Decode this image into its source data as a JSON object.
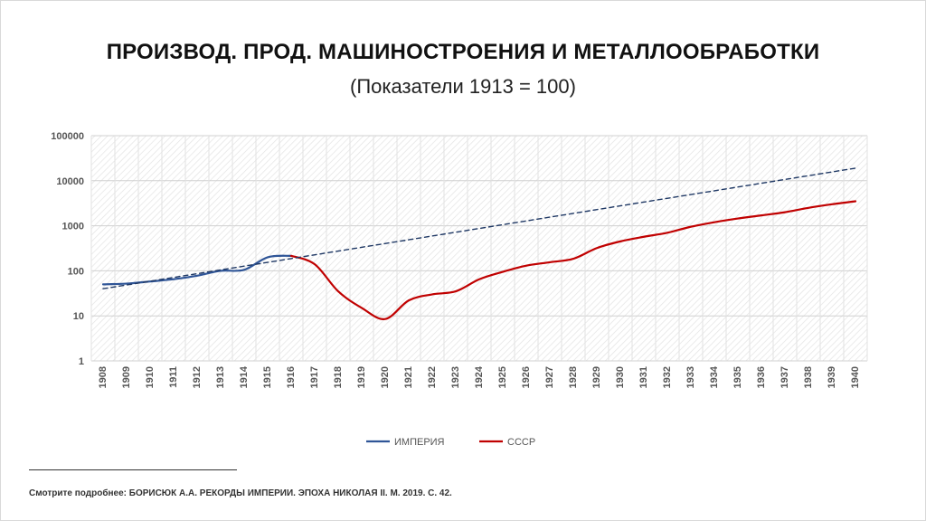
{
  "header": {
    "title": "ПРОИЗВОД. ПРОД. МАШИНОСТРОЕНИЯ И МЕТАЛЛООБРАБОТКИ",
    "subtitle": "(Показатели 1913 = 100)"
  },
  "footnote": "Смотрите подробнее: БОРИСЮК А.А. РЕКОРДЫ ИМПЕРИИ. ЭПОХА НИКОЛАЯ II. М. 2019. С. 42.",
  "chart_data": {
    "type": "line",
    "y_scale": "log",
    "ylim": [
      1,
      100000
    ],
    "y_ticks": [
      1,
      10,
      100,
      1000,
      10000,
      100000
    ],
    "y_tick_labels": [
      "1",
      "10",
      "100",
      "1000",
      "10000",
      "100000"
    ],
    "grid": true,
    "legend_position": "bottom",
    "x": [
      1908,
      1909,
      1910,
      1911,
      1912,
      1913,
      1914,
      1915,
      1916,
      1917,
      1918,
      1919,
      1920,
      1921,
      1922,
      1923,
      1924,
      1925,
      1926,
      1927,
      1928,
      1929,
      1930,
      1931,
      1932,
      1933,
      1934,
      1935,
      1936,
      1937,
      1938,
      1939,
      1940
    ],
    "series": [
      {
        "name": "ИМПЕРИЯ",
        "color": "#2f5597",
        "style": "solid",
        "x": [
          1908,
          1909,
          1910,
          1911,
          1912,
          1913,
          1914,
          1915,
          1916
        ],
        "values": [
          50,
          52,
          58,
          65,
          78,
          100,
          105,
          200,
          215
        ]
      },
      {
        "name": "СССР",
        "color": "#c00000",
        "style": "solid",
        "x": [
          1916,
          1917,
          1918,
          1919,
          1920,
          1921,
          1922,
          1923,
          1924,
          1925,
          1926,
          1927,
          1928,
          1929,
          1930,
          1931,
          1932,
          1933,
          1934,
          1935,
          1936,
          1937,
          1938,
          1939,
          1940
        ],
        "values": [
          215,
          140,
          35,
          15,
          8.5,
          22,
          30,
          35,
          65,
          95,
          130,
          155,
          185,
          320,
          450,
          570,
          700,
          950,
          1200,
          1450,
          1700,
          2000,
          2500,
          3000,
          3500
        ]
      },
      {
        "name": "",
        "color": "#1f3864",
        "style": "dashed",
        "trend": true,
        "x": [
          1908,
          1940
        ],
        "values": [
          40,
          19000
        ]
      }
    ]
  }
}
